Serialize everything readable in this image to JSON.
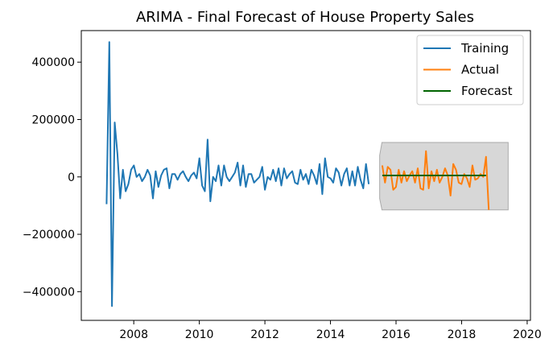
{
  "chart_data": {
    "type": "line",
    "title": "ARIMA - Final Forecast of House Property Sales",
    "xlabel": "",
    "ylabel": "",
    "xlim": [
      2006.4,
      2020.1
    ],
    "ylim": [
      -500000,
      510000
    ],
    "x_ticks": [
      2008,
      2010,
      2012,
      2014,
      2016,
      2018,
      2020
    ],
    "x_tick_labels": [
      "2008",
      "2010",
      "2012",
      "2014",
      "2016",
      "2018",
      "2020"
    ],
    "y_ticks": [
      400000,
      200000,
      0,
      -200000,
      -400000
    ],
    "y_tick_labels": [
      "400000",
      "200000",
      "0",
      "−200000",
      "−400000"
    ],
    "grid": false,
    "legend_position": "top-right",
    "colors": {
      "training": "#1f77b4",
      "actual": "#ff7f0e",
      "forecast": "#006400",
      "confidence_band": "#d3d3d3"
    },
    "series": [
      {
        "name": "Training",
        "x_start": 2007.17,
        "x_step": 0.0833,
        "values": [
          -95000,
          470000,
          -450000,
          190000,
          80000,
          -75000,
          25000,
          -50000,
          -25000,
          25000,
          40000,
          0,
          10000,
          -15000,
          0,
          25000,
          5000,
          -75000,
          20000,
          -35000,
          5000,
          25000,
          30000,
          -40000,
          10000,
          10000,
          -10000,
          10000,
          20000,
          0,
          -15000,
          5000,
          15000,
          -5000,
          65000,
          -30000,
          -50000,
          130000,
          -85000,
          0,
          -15000,
          40000,
          -30000,
          40000,
          0,
          -15000,
          0,
          15000,
          50000,
          -30000,
          40000,
          -35000,
          10000,
          10000,
          -20000,
          -10000,
          0,
          35000,
          -45000,
          0,
          -10000,
          25000,
          -15000,
          30000,
          -30000,
          30000,
          -5000,
          10000,
          20000,
          -20000,
          -25000,
          25000,
          -10000,
          10000,
          -25000,
          25000,
          5000,
          -25000,
          45000,
          -60000,
          65000,
          0,
          -5000,
          -20000,
          30000,
          15000,
          -30000,
          10000,
          30000,
          -30000,
          20000,
          -30000,
          35000,
          -10000,
          -40000,
          45000,
          -25000
        ]
      },
      {
        "name": "Actual",
        "x_start": 2015.58,
        "x_step": 0.0833,
        "values": [
          40000,
          -20000,
          35000,
          25000,
          -45000,
          -35000,
          25000,
          -20000,
          20000,
          -15000,
          5000,
          20000,
          -20000,
          30000,
          -40000,
          -45000,
          90000,
          -40000,
          20000,
          -15000,
          25000,
          -20000,
          0,
          30000,
          5000,
          -65000,
          45000,
          25000,
          -20000,
          -25000,
          10000,
          -5000,
          -35000,
          40000,
          -10000,
          -5000,
          10000,
          0,
          70000,
          -115000
        ]
      },
      {
        "name": "Forecast",
        "x_start": 2015.58,
        "x_step": 0.0833,
        "values": [
          5000,
          5000,
          5000,
          5000,
          5000,
          5000,
          5000,
          5000,
          5000,
          5000,
          5000,
          5000,
          5000,
          5000,
          5000,
          5000,
          5000,
          5000,
          5000,
          5000,
          5000,
          5000,
          5000,
          5000,
          5000,
          5000,
          5000,
          5000,
          5000,
          5000,
          5000,
          5000,
          5000,
          5000,
          5000,
          5000,
          5000,
          5000,
          5000
        ]
      }
    ],
    "confidence_band": {
      "x_start": 2015.5,
      "x_end": 2019.42,
      "upper_start": 75000,
      "upper": 120000,
      "lower_start": -75000,
      "lower": -115000
    }
  }
}
